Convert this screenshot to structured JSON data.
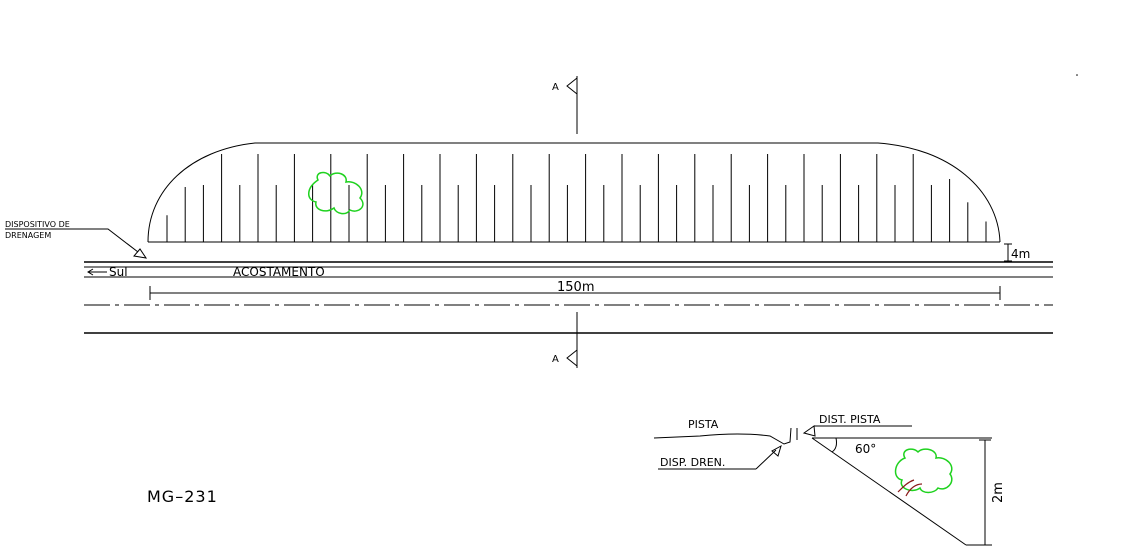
{
  "labels": {
    "section_marker": "A",
    "drainage_note_line1": "DISPOSITIVO DE",
    "drainage_note_line2": "DRENAGEM",
    "direction": "Sul",
    "shoulder": "ACOSTAMENTO",
    "length_dim": "150m",
    "width_dim": "4m",
    "road_code": "MG–231"
  },
  "section": {
    "pista": "PISTA",
    "dist_pista": "DIST. PISTA",
    "disp_dren": "DISP. DREN.",
    "angle": "60°",
    "height_dim": "2m"
  },
  "colors": {
    "line": "#000000",
    "tree": "#1fd21f",
    "trunk": "#8b1a1a"
  }
}
